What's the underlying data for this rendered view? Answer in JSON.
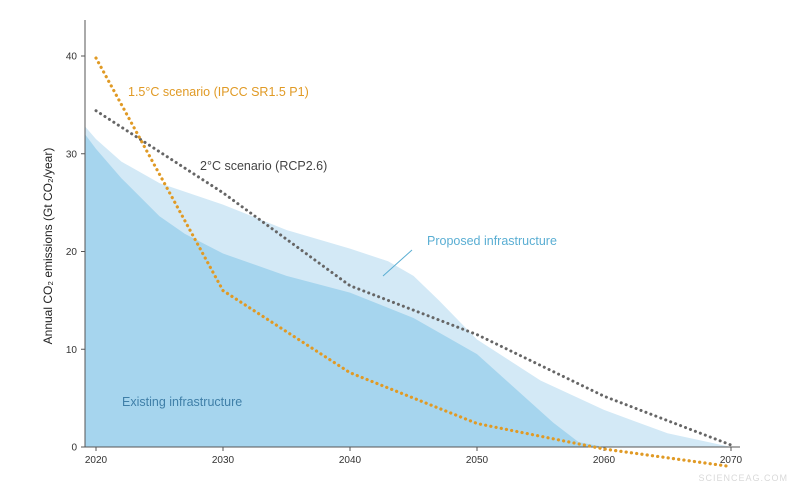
{
  "chart_data": {
    "type": "area",
    "ylabel": "Annual CO₂ emissions (Gt CO₂/year)",
    "xlim": [
      2019,
      2071
    ],
    "ylim": [
      0,
      42
    ],
    "x_ticks": [
      2020,
      2030,
      2040,
      2050,
      2060,
      2070
    ],
    "y_ticks": [
      0,
      10,
      20,
      30,
      40
    ],
    "grid": false,
    "legend": "inline annotations",
    "areas": [
      {
        "name": "Proposed infrastructure",
        "color": "#d3e9f6",
        "x": [
          2019,
          2020,
          2022,
          2025,
          2030,
          2035,
          2040,
          2043,
          2045,
          2047,
          2050,
          2055,
          2060,
          2065,
          2070
        ],
        "y": [
          32.8,
          31.5,
          29.2,
          27.0,
          24.8,
          22.2,
          20.3,
          19.0,
          17.5,
          15.0,
          11.0,
          6.8,
          3.8,
          1.4,
          0.0
        ]
      },
      {
        "name": "Existing infrastructure",
        "color": "#a6d5ee",
        "x": [
          2019,
          2020,
          2022,
          2025,
          2027,
          2030,
          2035,
          2040,
          2045,
          2050,
          2053,
          2056,
          2058,
          2060,
          2065,
          2070
        ],
        "y": [
          32.0,
          30.5,
          27.5,
          23.6,
          21.8,
          19.8,
          17.5,
          15.8,
          13.2,
          9.5,
          6.0,
          2.5,
          0.5,
          0.0,
          0.0,
          0.0
        ]
      }
    ],
    "series": [
      {
        "name": "2°C scenario (RCP2.6)",
        "color": "#666666",
        "x": [
          2020,
          2030,
          2040,
          2050,
          2060,
          2070
        ],
        "y": [
          34.4,
          26.0,
          16.5,
          11.5,
          5.2,
          0.2
        ]
      },
      {
        "name": "1.5°C scenario (IPCC SR1.5 P1)",
        "color": "#e09a25",
        "x": [
          2020,
          2030,
          2040,
          2050,
          2060,
          2070
        ],
        "y": [
          39.8,
          16.0,
          7.6,
          2.4,
          -0.2,
          -2.0
        ]
      }
    ],
    "annotations": {
      "existing": "Existing infrastructure",
      "proposed": "Proposed infrastructure",
      "two_deg": "2°C scenario (RCP2.6)",
      "one_five": "1.5°C scenario (IPCC SR1.5 P1)"
    }
  },
  "watermark": "SCIENCEAG.COM",
  "colors": {
    "axis": "#555555",
    "annotation_blue": "#5aaed3",
    "two_deg": "#666666",
    "one_five": "#e09a25"
  }
}
